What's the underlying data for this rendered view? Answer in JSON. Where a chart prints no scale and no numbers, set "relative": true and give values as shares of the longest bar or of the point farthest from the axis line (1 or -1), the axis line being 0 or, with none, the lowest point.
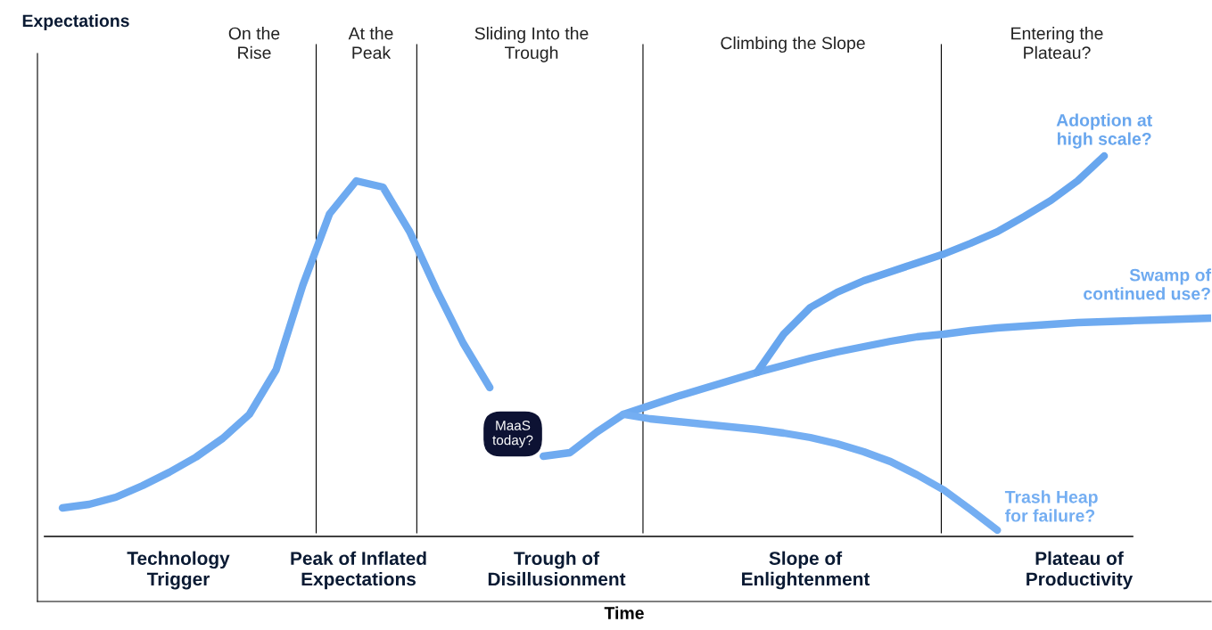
{
  "chart_data": {
    "type": "line",
    "relative": true,
    "xlabel": "Time",
    "categories": [
      null,
      null,
      null,
      null,
      null,
      null,
      null,
      null,
      null,
      null,
      null,
      null,
      null,
      null,
      null,
      null,
      null,
      null,
      null,
      null,
      null,
      null,
      null,
      null,
      null,
      null,
      null,
      null,
      null,
      null,
      null,
      null,
      null,
      null,
      null,
      null,
      null,
      null,
      null,
      null,
      null,
      null,
      null,
      null
    ],
    "series": [
      {
        "name": "Swamp of continued use?",
        "color": "#6eaaf0",
        "values": [
          0.21,
          0.218,
          0.234,
          0.26,
          0.29,
          0.324,
          0.366,
          0.42,
          0.52,
          0.71,
          0.87,
          0.944,
          0.93,
          0.83,
          0.7,
          0.58,
          0.48,
          null,
          0.326,
          0.334,
          0.38,
          0.42,
          0.44,
          0.46,
          0.478,
          0.496,
          0.514,
          0.53,
          0.546,
          0.56,
          0.572,
          0.584,
          0.594,
          0.6,
          0.608,
          0.614,
          0.618,
          0.622,
          0.626,
          0.628,
          0.63,
          0.632,
          0.634,
          0.636
        ]
      },
      {
        "name": "Adoption at high scale?",
        "color": "#68a6ee",
        "values": [
          null,
          null,
          null,
          null,
          null,
          null,
          null,
          null,
          null,
          null,
          null,
          null,
          null,
          null,
          null,
          null,
          null,
          null,
          null,
          null,
          null,
          null,
          null,
          null,
          null,
          null,
          0.514,
          0.6,
          0.66,
          0.694,
          0.72,
          0.74,
          0.76,
          0.78,
          0.804,
          0.83,
          0.864,
          0.9,
          0.944,
          1.0,
          null,
          null,
          null,
          null
        ]
      },
      {
        "name": "Trash Heap for failure?",
        "color": "#74aef2",
        "values": [
          null,
          null,
          null,
          null,
          null,
          null,
          null,
          null,
          null,
          null,
          null,
          null,
          null,
          null,
          null,
          null,
          null,
          null,
          null,
          null,
          null,
          0.42,
          0.41,
          0.404,
          0.398,
          0.392,
          0.386,
          0.378,
          0.368,
          0.354,
          0.336,
          0.314,
          0.284,
          0.25,
          0.206,
          0.16,
          null,
          null,
          null,
          null,
          null,
          null,
          null,
          null
        ]
      }
    ],
    "ref_lines": [
      {
        "axis": "y",
        "value": 0.146,
        "color": "#000000"
      }
    ],
    "annotations": [
      "On the\nRise",
      "At the\nPeak",
      "Sliding Into the\nTrough",
      "Climbing the Slope",
      "Entering the\nPlateau?",
      "Technology\nTrigger",
      "Peak of Inflated\nExpectations",
      "Trough of\nDisillusionment",
      "Slope of\nEnlightenment",
      "Plateau of\nProductivity",
      "MaaS\ntoday?",
      "Expectations"
    ]
  }
}
